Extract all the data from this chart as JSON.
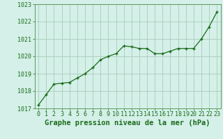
{
  "x": [
    0,
    1,
    2,
    3,
    4,
    5,
    6,
    7,
    8,
    9,
    10,
    11,
    12,
    13,
    14,
    15,
    16,
    17,
    18,
    19,
    20,
    21,
    22,
    23
  ],
  "y": [
    1017.2,
    1017.8,
    1018.4,
    1018.45,
    1018.5,
    1018.75,
    1019.0,
    1019.35,
    1019.8,
    1020.0,
    1020.15,
    1020.6,
    1020.55,
    1020.45,
    1020.45,
    1020.15,
    1020.15,
    1020.3,
    1020.45,
    1020.45,
    1020.45,
    1021.0,
    1021.7,
    1022.55
  ],
  "line_color": "#1a6b1a",
  "marker": "+",
  "marker_color": "#1a6b1a",
  "bg_color": "#d4f0e8",
  "grid_color": "#aaccbb",
  "xlabel": "Graphe pression niveau de la mer (hPa)",
  "xlabel_color": "#1a6b1a",
  "tick_color": "#1a6b1a",
  "border_color": "#5a9a5a",
  "ylim": [
    1017.0,
    1023.0
  ],
  "xlim": [
    -0.5,
    23.5
  ],
  "yticks": [
    1017,
    1018,
    1019,
    1020,
    1021,
    1022,
    1023
  ],
  "xticks": [
    0,
    1,
    2,
    3,
    4,
    5,
    6,
    7,
    8,
    9,
    10,
    11,
    12,
    13,
    14,
    15,
    16,
    17,
    18,
    19,
    20,
    21,
    22,
    23
  ],
  "xlabel_fontsize": 7.5,
  "tick_fontsize": 6.0
}
